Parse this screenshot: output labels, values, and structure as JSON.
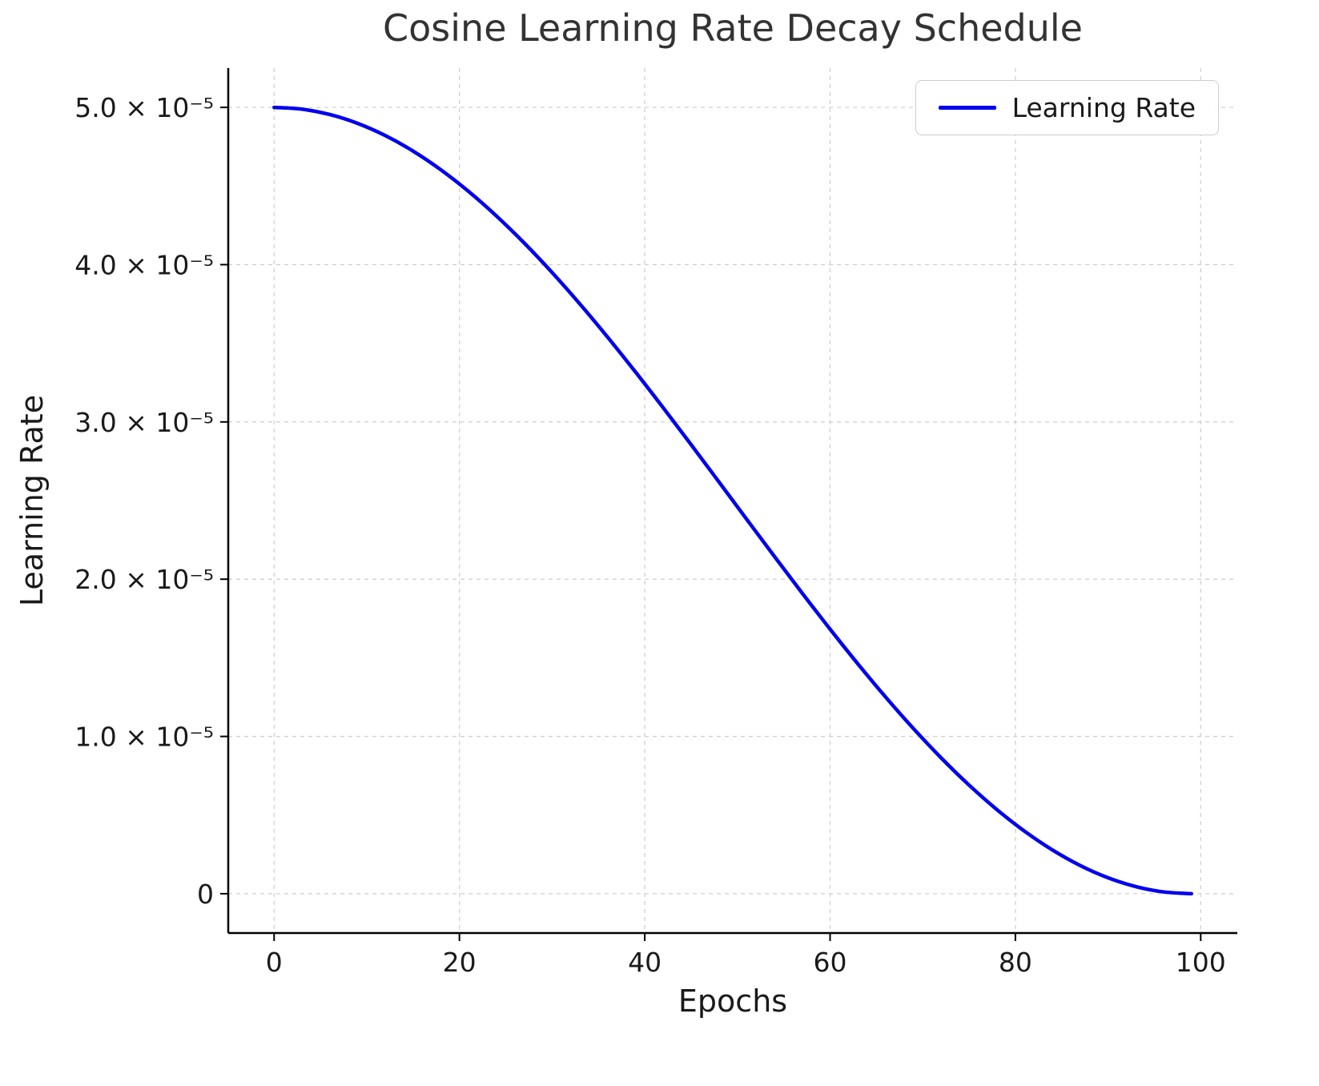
{
  "colors": {
    "line": "#0000EE",
    "grid": "#d0d0d0",
    "spine": "#000000",
    "tick_label": "#1a1a1a",
    "title": "#333333"
  },
  "chart_data": {
    "type": "line",
    "title": "Cosine Learning Rate Decay Schedule",
    "xlabel": "Epochs",
    "ylabel": "Learning Rate",
    "grid": true,
    "grid_style": "dashed",
    "xlim": [
      -4.95,
      103.95
    ],
    "ylim": [
      -2.5e-06,
      5.25e-05
    ],
    "x_ticks": [
      0,
      20,
      40,
      60,
      80,
      100
    ],
    "x_tick_labels": [
      "0",
      "20",
      "40",
      "60",
      "80",
      "100"
    ],
    "y_ticks": [
      0,
      1e-05,
      2e-05,
      3e-05,
      4e-05,
      5e-05
    ],
    "y_tick_labels": [
      "0",
      "1.0 × 10⁻⁵",
      "2.0 × 10⁻⁵",
      "3.0 × 10⁻⁵",
      "4.0 × 10⁻⁵",
      "5.0 × 10⁻⁵"
    ],
    "legend": {
      "loc": "upper right",
      "labels": [
        "Learning Rate"
      ]
    },
    "series": [
      {
        "name": "Learning Rate",
        "color": "#0000EE",
        "x": [
          0,
          3,
          6,
          9,
          12,
          15,
          18,
          21,
          24,
          27,
          30,
          33,
          36,
          39,
          42,
          45,
          48,
          51,
          54,
          57,
          60,
          63,
          66,
          69,
          72,
          75,
          78,
          81,
          84,
          87,
          90,
          93,
          96,
          99
        ],
        "y": [
          5e-05,
          4.9887e-05,
          4.9548e-05,
          4.8987e-05,
          4.8209e-05,
          4.7221e-05,
          4.6031e-05,
          4.4651e-05,
          4.3093e-05,
          4.1372e-05,
          3.9501e-05,
          3.75e-05,
          3.5385e-05,
          3.3177e-05,
          3.0894e-05,
          2.8558e-05,
          2.619e-05,
          2.381e-05,
          2.1442e-05,
          1.9106e-05,
          1.6823e-05,
          1.4615e-05,
          1.25e-05,
          1.0499e-05,
          8.628e-06,
          6.907e-06,
          5.349e-06,
          3.969e-06,
          2.779e-06,
          1.791e-06,
          1.013e-06,
          4.52e-07,
          1.13e-07,
          0.0
        ]
      }
    ]
  }
}
